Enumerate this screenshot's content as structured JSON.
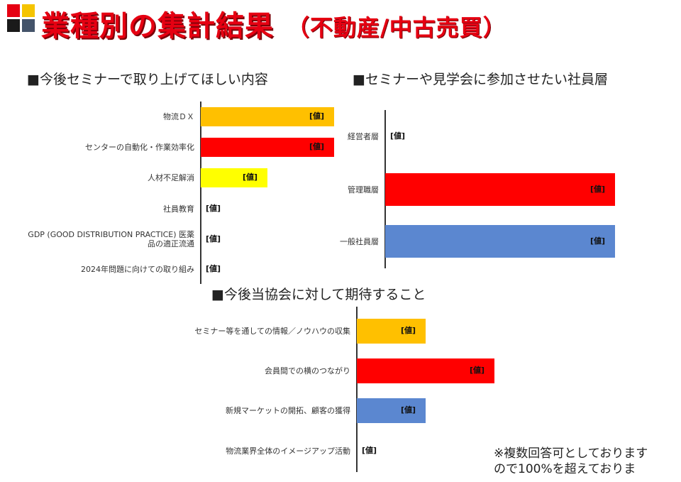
{
  "header": {
    "title": "業種別の集計結果",
    "subtitle": "（不動産/中古売買）",
    "logo_colors": [
      "#e60012",
      "#f5c400",
      "#1a1a1a",
      "#44546a"
    ]
  },
  "note": "※複数回答可としております\nので100%を超えておりま",
  "chart_data": [
    {
      "type": "bar",
      "orientation": "horizontal",
      "title": "■今後セミナーで取り上げてほしい内容",
      "categories": [
        "物流ＤＸ",
        "センターの自動化・作業効率化",
        "人材不足解消",
        "社員教育",
        "GDP (GOOD DISTRIBUTION PRACTICE) 医薬品の適正流通",
        "2024年問題に向けての取り組み"
      ],
      "values": [
        2,
        2,
        1,
        0,
        0,
        0
      ],
      "data_labels": [
        "[値]",
        "[値]",
        "[値]",
        "[値]",
        "[値]",
        "[値]"
      ],
      "colors": [
        "#ffc000",
        "#ff0000",
        "#ffff00",
        "#ffffff",
        "#ffffff",
        "#ffffff"
      ],
      "xlim": [
        0,
        2
      ]
    },
    {
      "type": "bar",
      "orientation": "horizontal",
      "title": "■セミナーや見学会に参加させたい社員層",
      "categories": [
        "経営者層",
        "管理職層",
        "一般社員層"
      ],
      "values": [
        0,
        1,
        1
      ],
      "data_labels": [
        "[値]",
        "[値]",
        "[値]"
      ],
      "colors": [
        "#ffffff",
        "#ff0000",
        "#5b87d0"
      ],
      "xlim": [
        0,
        1
      ]
    },
    {
      "type": "bar",
      "orientation": "horizontal",
      "title": "■今後当協会に対して期待すること",
      "categories": [
        "セミナー等を通しての情報／ノウハウの収集",
        "会員間での横のつながり",
        "新規マーケットの開拓、顧客の獲得",
        "物流業界全体のイメージアップ活動"
      ],
      "values": [
        1,
        2,
        1,
        0
      ],
      "data_labels": [
        "[値]",
        "[値]",
        "[値]",
        "[値]"
      ],
      "colors": [
        "#ffc000",
        "#ff0000",
        "#5b87d0",
        "#ffffff"
      ],
      "xlim": [
        0,
        2
      ]
    }
  ]
}
